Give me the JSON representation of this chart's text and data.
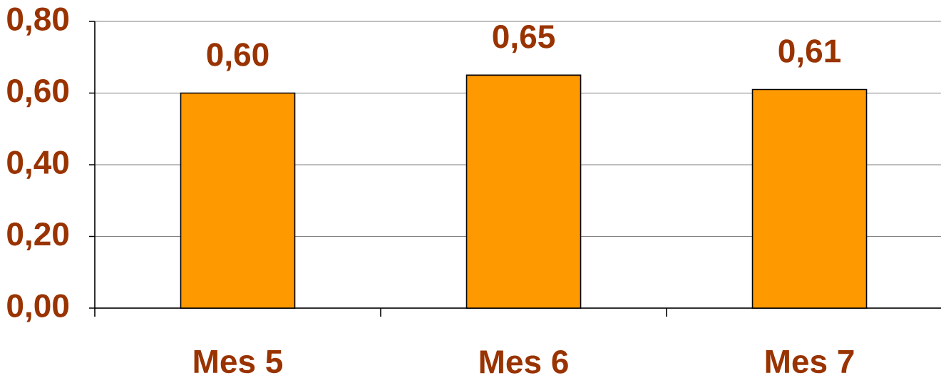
{
  "chart_data": {
    "type": "bar",
    "categories": [
      "Mes 5",
      "Mes 6",
      "Mes 7"
    ],
    "values": [
      0.6,
      0.65,
      0.61
    ],
    "value_labels": [
      "0,60",
      "0,65",
      "0,61"
    ],
    "color": "#ff9900",
    "ylim": [
      0,
      0.8
    ],
    "yticks": [
      {
        "value": 0,
        "label": "0,00"
      },
      {
        "value": 0.2,
        "label": "0,20"
      },
      {
        "value": 0.4,
        "label": "0,40"
      },
      {
        "value": 0.6,
        "label": "0,60"
      },
      {
        "value": 0.8,
        "label": "0,80"
      }
    ],
    "grid": "y"
  }
}
